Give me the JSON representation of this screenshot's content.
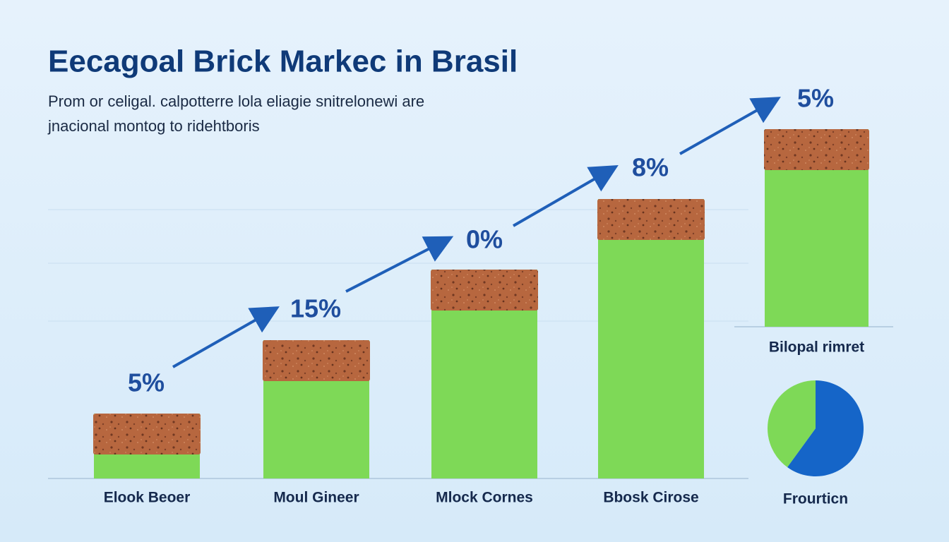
{
  "title": "Eecagoal Brick Markec in Brasil",
  "subtitle": [
    "Prom  or celigal. calpotterre lola eliagie snitrelonewi are",
    "jnacional montog to ridehtboris"
  ],
  "chart_data": [
    {
      "type": "bar",
      "categories": [
        "Elook Beoer",
        "Moul Gineer",
        "Mlock Cornes",
        "Bbosk Cirose"
      ],
      "values": [
        23,
        49,
        74,
        99
      ],
      "color": "#7ed957",
      "cap_color": "#b5643f",
      "ylim": [
        0,
        100
      ],
      "annotations": [
        "5%",
        "15%",
        "0%",
        "8%",
        "5%"
      ]
    },
    {
      "type": "bar",
      "categories": [
        "Bilopal rimret"
      ],
      "values": [
        70
      ],
      "color": "#7ed957",
      "cap_color": "#b5643f",
      "ylim": [
        0,
        100
      ]
    },
    {
      "type": "pie",
      "title": "Frourticn",
      "values": [
        60,
        40
      ],
      "colors": [
        "#1565c8",
        "#7ed957"
      ]
    }
  ]
}
